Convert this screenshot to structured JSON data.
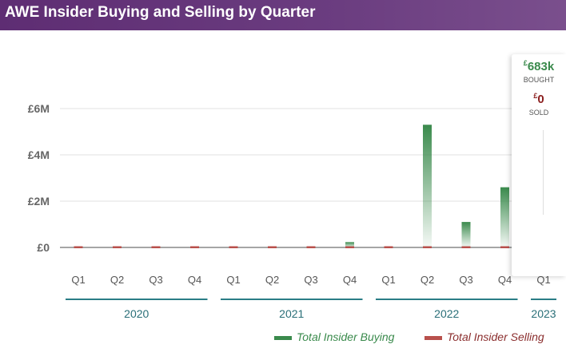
{
  "title": "AWE Insider Buying and Selling by Quarter",
  "colors": {
    "buy": "#3a8a4c",
    "sell": "#b8504c",
    "axis": "#2a7d86",
    "text": "#555555"
  },
  "chart_data": {
    "type": "bar",
    "title": "AWE Insider Buying and Selling by Quarter",
    "y_ticks": [
      "£6M",
      "£4M",
      "£2M",
      "£0"
    ],
    "y_tick_values": [
      6000000,
      4000000,
      2000000,
      0
    ],
    "ylim": [
      0,
      6000000
    ],
    "categories": [
      "Q1",
      "Q2",
      "Q3",
      "Q4",
      "Q1",
      "Q2",
      "Q3",
      "Q4",
      "Q1",
      "Q2",
      "Q3",
      "Q4",
      "Q1"
    ],
    "year_groups": [
      {
        "label": "2020",
        "quarters": 4
      },
      {
        "label": "2021",
        "quarters": 4
      },
      {
        "label": "2022",
        "quarters": 4
      },
      {
        "label": "2023",
        "quarters": 1
      }
    ],
    "series": [
      {
        "name": "Total Insider Buying",
        "color": "#3a8a4c",
        "values": [
          0,
          0,
          0,
          0,
          0,
          0,
          0,
          230000,
          0,
          5300000,
          1100000,
          2600000,
          683000
        ]
      },
      {
        "name": "Total Insider Selling",
        "color": "#b8504c",
        "values": [
          0,
          0,
          0,
          0,
          0,
          0,
          0,
          0,
          0,
          0,
          0,
          0,
          0
        ]
      }
    ]
  },
  "tooltip": {
    "bought_currency": "£",
    "bought_value": "683k",
    "bought_label": "BOUGHT",
    "sold_currency": "£",
    "sold_value": "0",
    "sold_label": "SOLD"
  },
  "legend": {
    "buy_label": "Total Insider Buying",
    "sell_label": "Total Insider Selling"
  }
}
